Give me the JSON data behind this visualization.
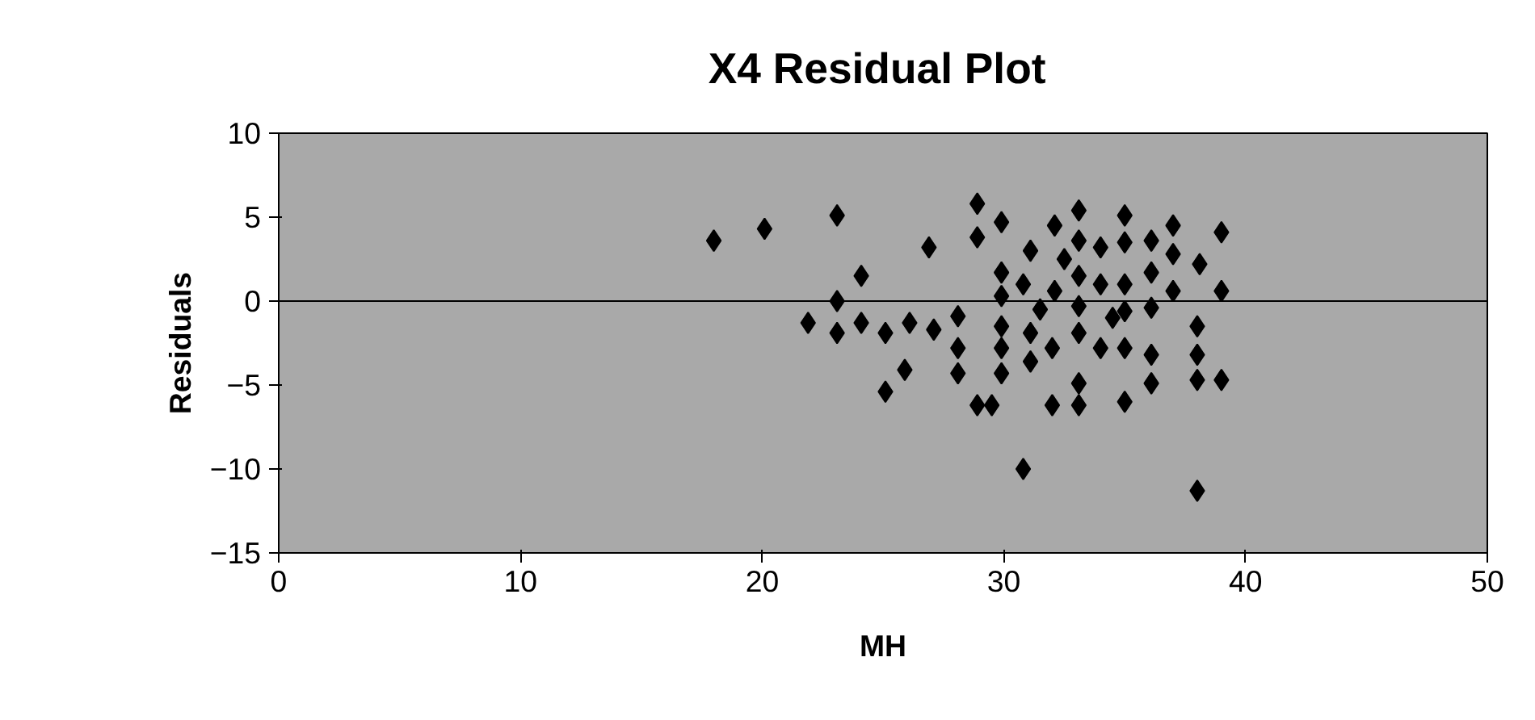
{
  "chart_data": {
    "type": "scatter",
    "title": "X4  Residual Plot",
    "xlabel": "MH",
    "ylabel": "Residuals",
    "marker": "diamond",
    "ref_lines": [
      {
        "axis": "y",
        "value": 0,
        "color": "#000000"
      }
    ],
    "grid": false,
    "xlim": [
      0,
      50
    ],
    "xticks": [
      0,
      10,
      20,
      30,
      40,
      50
    ],
    "ylim": [
      -15,
      10
    ],
    "yticks": [
      -15,
      -10,
      -5,
      0,
      5,
      10
    ],
    "series": [
      {
        "color": "#000000",
        "x": [
          18,
          20.1,
          23.1,
          24.1,
          23.1,
          21.9,
          23.1,
          24.1,
          25.1,
          26.1,
          27.1,
          25.9,
          25.1,
          26.9,
          28.1,
          28.1,
          28.1,
          28.9,
          28.9,
          29.9,
          29.9,
          29.9,
          29.9,
          29.9,
          29.9,
          28.9,
          29.5,
          30.8,
          31.1,
          30.8,
          31.1,
          31.1,
          32.1,
          32.1,
          32,
          32,
          33.1,
          33.1,
          33.1,
          33.1,
          33.1,
          33.1,
          33.1,
          34,
          34,
          34,
          35,
          35,
          35,
          35,
          35,
          35,
          36.1,
          36.1,
          36.1,
          36.1,
          36.1,
          37,
          37,
          37,
          38,
          38,
          38,
          39,
          39,
          39,
          38,
          38.1,
          32.5,
          31.5,
          34.5
        ],
        "values": [
          3.6,
          4.3,
          5.1,
          1.5,
          0,
          -1.3,
          -1.9,
          -1.3,
          -1.9,
          -1.3,
          -1.7,
          -4.1,
          -5.4,
          3.2,
          -0.9,
          -2.8,
          -4.3,
          5.8,
          3.8,
          4.7,
          1.7,
          0.3,
          -1.5,
          -2.8,
          -4.3,
          -6.2,
          -6.2,
          -10,
          3,
          1,
          -1.9,
          -3.6,
          4.5,
          0.6,
          -2.8,
          -6.2,
          5.4,
          3.6,
          1.5,
          -0.3,
          -1.9,
          -4.9,
          -6.2,
          3.2,
          1,
          -2.8,
          5.1,
          3.5,
          1,
          -0.6,
          -2.8,
          -6,
          3.6,
          1.7,
          -0.4,
          -3.2,
          -4.9,
          4.5,
          2.8,
          0.6,
          -1.5,
          -3.2,
          -4.7,
          4.1,
          0.6,
          -4.7,
          -11.3,
          2.2,
          2.5,
          -0.5,
          -1
        ]
      }
    ]
  }
}
